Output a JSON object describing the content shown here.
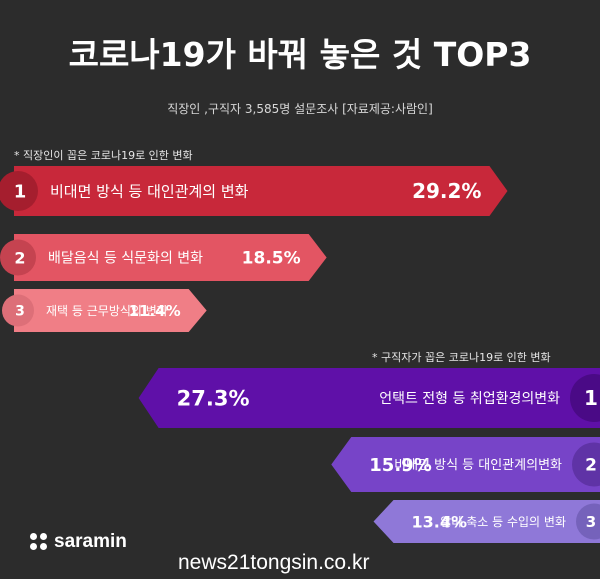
{
  "header": {
    "title": "코로나19가 바꿔 놓은 것 TOP3",
    "subtitle": "직장인 ,구직자 3,585명 설문조사   [자료제공:사람인]"
  },
  "sections": {
    "employees_note": "* 직장인이 꼽은 코로나19로 인한 변화",
    "jobseekers_note": "* 구직자가 꼽은 코로나19로 인한 변화"
  },
  "chart_data": [
    {
      "type": "bar",
      "orientation": "horizontal",
      "direction": "left-to-right",
      "ranks": [
        "1",
        "2",
        "3"
      ],
      "categories": [
        "비대면 방식 등 대인관계의 변화",
        "배달음식 등 식문화의 변화",
        "재택 등 근무방식의 변화"
      ],
      "values": [
        29.2,
        18.5,
        11.4
      ],
      "value_labels": [
        "29.2%",
        "18.5%",
        "11.4%"
      ],
      "unit": "%"
    },
    {
      "type": "bar",
      "orientation": "horizontal",
      "direction": "right-to-left",
      "ranks": [
        "1",
        "2",
        "3"
      ],
      "categories": [
        "언택트 전형 등 취업환경의변화",
        "비대면 방식 등 대인관계의변화",
        "알바 축소 등 수입의 변화"
      ],
      "values": [
        27.3,
        15.9,
        13.4
      ],
      "value_labels": [
        "27.3%",
        "15.9%",
        "13.4%"
      ],
      "unit": "%"
    }
  ],
  "colors": {
    "employee_bars": [
      "#c8283a",
      "#e35563",
      "#f07e86"
    ],
    "employee_badges": [
      "#a51e2e",
      "#c54350",
      "#dd6f78"
    ],
    "jobseeker_bars": [
      "#5f10a8",
      "#7744c8",
      "#8f78d8"
    ],
    "jobseeker_badges": [
      "#4a0a86",
      "#5f33a6",
      "#7562bb"
    ]
  },
  "footer": {
    "brand": "saramin",
    "watermark": "news21tongsin.co.kr"
  }
}
